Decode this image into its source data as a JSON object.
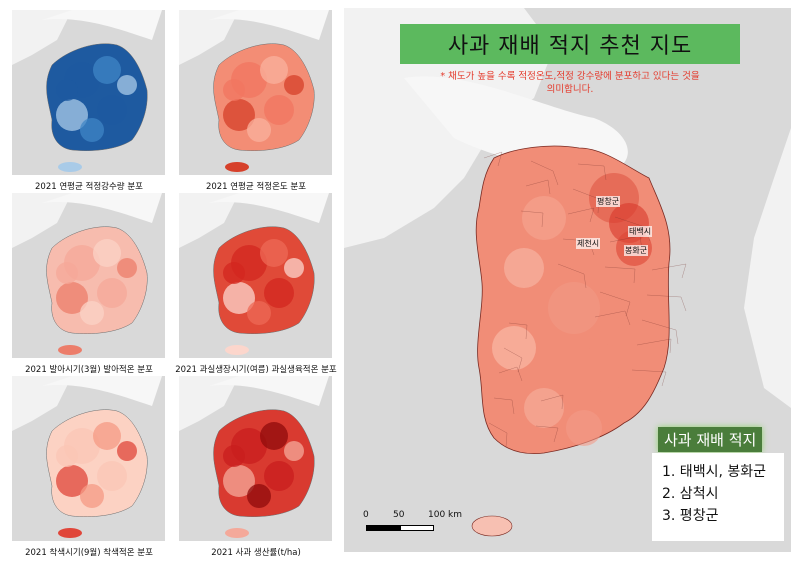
{
  "small_maps": [
    {
      "caption": "2021 연평균 적정강수량 분포",
      "palette": [
        "#1e5aa0",
        "#3f85c6",
        "#a9cbe8"
      ],
      "base": "#1e5aa0"
    },
    {
      "caption": "2021 연평균 적정온도 분포",
      "palette": [
        "#f27560",
        "#f9b29e",
        "#d6402a"
      ],
      "base": "#f38d75"
    },
    {
      "caption": "2021 발아시기(3월) 발아적온 분포",
      "palette": [
        "#f5a898",
        "#fbd3c6",
        "#ec7d6a"
      ],
      "base": "#f7bcae"
    },
    {
      "caption": "2021 과실생장시기(여름) 과실생육적온 분포",
      "palette": [
        "#d3271f",
        "#ee6a55",
        "#fcd6cc"
      ],
      "base": "#e04a38"
    },
    {
      "caption": "2021 착색시기(9월) 착색적온 분포",
      "palette": [
        "#fbc6b5",
        "#f59a84",
        "#e0463a"
      ],
      "base": "#fcd2c3"
    },
    {
      "caption": "2021 사과 생산률(t/ha)",
      "palette": [
        "#c81e1e",
        "#8f0b0b",
        "#f4a99a"
      ],
      "base": "#d93a30"
    }
  ],
  "main": {
    "title": "사과 재배 적지 추천 지도",
    "note_line1": "* 채도가 높을 수록 적정온도,적정 강수량에 분포하고 있다는 것을",
    "note_line2": "의미합니다.",
    "cities": [
      "평창군",
      "태백시",
      "제천시",
      "봉화군"
    ],
    "legend_title": "사과 재배 적지",
    "legend_items": [
      "1. 태백시, 봉화군",
      "2. 삼척시",
      "3. 평창군"
    ],
    "scale_labels": [
      "0",
      "50",
      "100 km"
    ]
  },
  "colors": {
    "map_background": "#d9d9d9",
    "land_neighbors": "#f2f2f2",
    "title_green": "#5cb95e",
    "note_red": "#e43a2c"
  }
}
